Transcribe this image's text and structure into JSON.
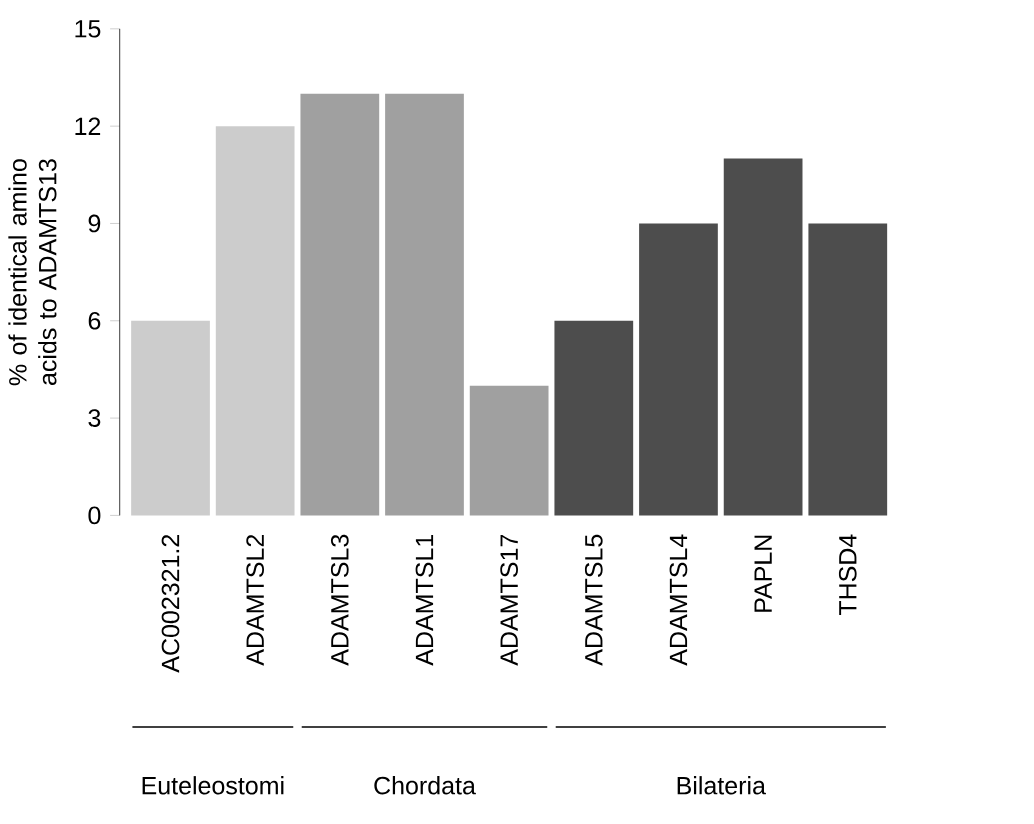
{
  "chart_data": {
    "type": "bar",
    "ylabel": "% of identical amino acids to ADAMTS13",
    "categories": [
      "AC002321.2",
      "ADAMTSL2",
      "ADAMTSL3",
      "ADAMTSL1",
      "ADAMTS17",
      "ADAMTSL5",
      "ADAMTSL4",
      "PAPLN",
      "THSD4"
    ],
    "values": [
      6,
      12,
      13,
      13,
      4,
      6,
      9,
      11,
      9
    ],
    "colors": [
      "#cccccc",
      "#cccccc",
      "#a0a0a0",
      "#a0a0a0",
      "#a0a0a0",
      "#4d4d4d",
      "#4d4d4d",
      "#4d4d4d",
      "#4d4d4d"
    ],
    "ylim": [
      0,
      15
    ],
    "yticks": [
      0,
      3,
      6,
      9,
      12,
      15
    ],
    "annotations": [
      "Euteleostomi",
      "Chordata",
      "Bilateria"
    ]
  }
}
